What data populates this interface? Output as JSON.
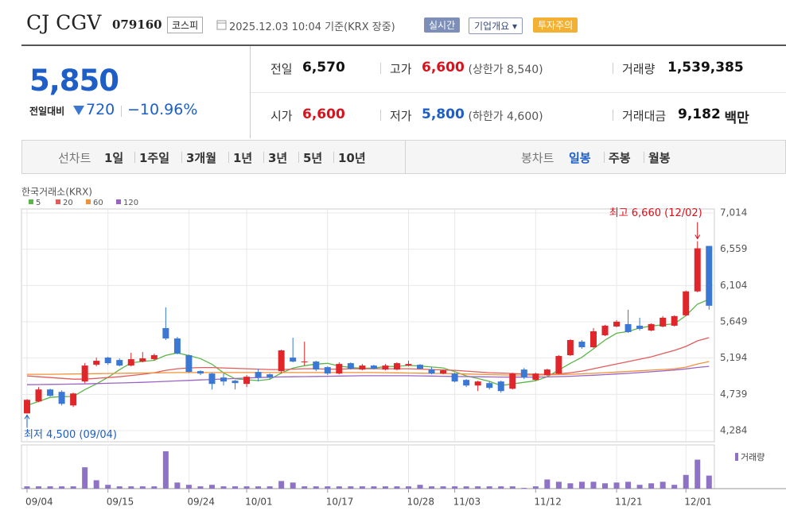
{
  "header": {
    "company": "CJ CGV",
    "code": "079160",
    "market": "코스피",
    "timestamp": "2025.12.03 10:04 기준(KRX 장중)",
    "buttons": [
      "실시간",
      "기업개요",
      "투자주의"
    ]
  },
  "quote": {
    "price": "5,850",
    "change_label": "전일대비",
    "change": "720",
    "change_rate": "−10.96%",
    "items": [
      {
        "label": "전일",
        "value": "6,570",
        "color": "#111111"
      },
      {
        "label": "고가",
        "value": "6,600",
        "note": "(상한가 8,540)",
        "color": "#d7131d"
      },
      {
        "label": "거래량",
        "value": "1,539,385",
        "color": "#111111"
      },
      {
        "label": "시가",
        "value": "6,600",
        "color": "#d7131d"
      },
      {
        "label": "저가",
        "value": "5,800",
        "note": "(하한가 4,600)",
        "color": "#1d5fc7"
      },
      {
        "label": "거래대금",
        "value": "9,182",
        "unit": "백만",
        "color": "#111111"
      }
    ]
  },
  "tabs": {
    "line_label": "선차트",
    "line_periods": [
      "1일",
      "1주일",
      "3개월",
      "1년",
      "3년",
      "5년",
      "10년"
    ],
    "candle_label": "봉차트",
    "candle_periods": [
      "일봉",
      "주봉",
      "월봉"
    ]
  },
  "chart_data": {
    "type": "candlestick",
    "source": "한국거래소(KRX)",
    "max_label": "최고 6,660 (12/02)",
    "min_label": "최저 4,500 (09/04)",
    "categories": [
      "09/04",
      null,
      null,
      null,
      null,
      null,
      null,
      "09/15",
      null,
      null,
      null,
      null,
      null,
      null,
      "09/24",
      null,
      null,
      null,
      null,
      "10/01",
      null,
      null,
      null,
      null,
      null,
      null,
      "10/17",
      null,
      null,
      null,
      null,
      null,
      null,
      "10/28",
      null,
      null,
      null,
      "11/03",
      null,
      null,
      null,
      null,
      null,
      null,
      "11/12",
      null,
      null,
      null,
      null,
      null,
      null,
      "11/21",
      null,
      null,
      null,
      null,
      null,
      "12/01",
      null,
      null
    ],
    "open": [
      4500,
      4650,
      4800,
      4770,
      4600,
      4900,
      5110,
      5200,
      5170,
      5100,
      5150,
      5180,
      5570,
      5440,
      5230,
      5030,
      5000,
      4950,
      4910,
      4870,
      5020,
      4990,
      5030,
      5200,
      5140,
      5150,
      5080,
      5000,
      5130,
      5050,
      5100,
      5050,
      5050,
      5100,
      5110,
      5050,
      5000,
      5000,
      4920,
      4850,
      4880,
      4900,
      4810,
      5050,
      4920,
      4980,
      5000,
      5230,
      5400,
      5330,
      5480,
      5590,
      5620,
      5600,
      5540,
      5590,
      5600,
      5730,
      6030,
      6600
    ],
    "high": [
      4680,
      4830,
      4810,
      4790,
      4760,
      5130,
      5200,
      5210,
      5190,
      5260,
      5270,
      5250,
      5830,
      5460,
      5240,
      5040,
      5010,
      5000,
      4920,
      4980,
      5060,
      5000,
      5300,
      5450,
      5400,
      5160,
      5090,
      5140,
      5140,
      5120,
      5110,
      5120,
      5140,
      5160,
      5120,
      5080,
      5050,
      5010,
      4930,
      4910,
      4900,
      4910,
      5010,
      5070,
      5010,
      5060,
      5230,
      5430,
      5420,
      5570,
      5610,
      5670,
      5800,
      5700,
      5630,
      5720,
      5730,
      6040,
      6660,
      6600
    ],
    "low": [
      4500,
      4640,
      4710,
      4600,
      4580,
      4880,
      5090,
      5110,
      5090,
      5090,
      5140,
      5160,
      5420,
      5240,
      5010,
      4980,
      4800,
      4850,
      4800,
      4830,
      4900,
      4930,
      5000,
      5140,
      5100,
      5030,
      4980,
      4990,
      5050,
      5040,
      5050,
      5040,
      5040,
      5090,
      5050,
      4990,
      4990,
      4890,
      4830,
      4780,
      4800,
      4760,
      4800,
      4930,
      4910,
      4970,
      4990,
      5220,
      5310,
      5320,
      5470,
      5580,
      5510,
      5540,
      5530,
      5580,
      5590,
      5720,
      6020,
      5800
    ],
    "close": [
      4670,
      4800,
      4720,
      4620,
      4750,
      5100,
      5160,
      5130,
      5100,
      5180,
      5190,
      5230,
      5440,
      5250,
      5020,
      5000,
      4870,
      4900,
      4880,
      4960,
      4950,
      4950,
      5290,
      5150,
      5150,
      5050,
      5000,
      5120,
      5060,
      5100,
      5060,
      5100,
      5130,
      5120,
      5060,
      5000,
      5040,
      4900,
      4850,
      4900,
      4820,
      4780,
      5000,
      4950,
      5000,
      5050,
      5220,
      5420,
      5330,
      5530,
      5600,
      5650,
      5520,
      5560,
      5620,
      5700,
      5720,
      6030,
      6570,
      5850
    ],
    "up_color": "#e0262b",
    "down_color": "#3a78d4",
    "ylim": [
      4284,
      7014
    ],
    "yticks": [
      {
        "value": 4284,
        "label": "4,284"
      },
      {
        "value": 4739,
        "label": "4,739"
      },
      {
        "value": 5194,
        "label": "5,194"
      },
      {
        "value": 5649,
        "label": "5,649"
      },
      {
        "value": 6104,
        "label": "6,104"
      },
      {
        "value": 6559,
        "label": "6,559"
      },
      {
        "value": 7014,
        "label": "7,014"
      }
    ],
    "grid": true,
    "moving_averages": [
      {
        "name": "5",
        "color": "#5cb548",
        "values": [
          4600,
          4650,
          4700,
          4710,
          4712,
          4798,
          4870,
          4952,
          5048,
          5134,
          5152,
          5166,
          5228,
          5258,
          5226,
          5188,
          5116,
          5008,
          4934,
          4922,
          4912,
          4928,
          5006,
          5068,
          5098,
          5118,
          5128,
          5094,
          5076,
          5066,
          5068,
          5088,
          5090,
          5102,
          5094,
          5082,
          5070,
          5024,
          4970,
          4938,
          4902,
          4850,
          4870,
          4890,
          4910,
          4960,
          5044,
          5128,
          5204,
          5310,
          5420,
          5506,
          5526,
          5572,
          5596,
          5610,
          5624,
          5726,
          5870,
          5930
        ]
      },
      {
        "name": "20",
        "color": "#e35b5b",
        "values": [
          4970,
          4960,
          4950,
          4940,
          4930,
          4930,
          4940,
          4950,
          4960,
          4975,
          4990,
          5010,
          5040,
          5060,
          5070,
          5075,
          5075,
          5070,
          5065,
          5060,
          5055,
          5050,
          5050,
          5055,
          5060,
          5060,
          5055,
          5055,
          5060,
          5060,
          5060,
          5060,
          5060,
          5060,
          5055,
          5050,
          5045,
          5040,
          5030,
          5020,
          5010,
          5005,
          5000,
          4995,
          4990,
          4990,
          4995,
          5010,
          5030,
          5060,
          5090,
          5120,
          5150,
          5180,
          5210,
          5250,
          5290,
          5340,
          5410,
          5450
        ]
      },
      {
        "name": "60",
        "color": "#f0913a",
        "values": [
          4990,
          4990,
          4990,
          4992,
          4994,
          4996,
          4998,
          5000,
          5002,
          5004,
          5006,
          5008,
          5010,
          5012,
          5012,
          5012,
          5012,
          5012,
          5012,
          5012,
          5012,
          5012,
          5012,
          5012,
          5012,
          5012,
          5012,
          5012,
          5012,
          5012,
          5012,
          5010,
          5008,
          5006,
          5004,
          5002,
          5000,
          4998,
          4994,
          4990,
          4986,
          4982,
          4980,
          4980,
          4980,
          4982,
          4986,
          4990,
          4996,
          5002,
          5010,
          5018,
          5026,
          5034,
          5042,
          5050,
          5060,
          5080,
          5120,
          5150
        ]
      },
      {
        "name": "120",
        "color": "#9a63c4",
        "values": [
          4860,
          4862,
          4864,
          4866,
          4868,
          4870,
          4874,
          4878,
          4882,
          4886,
          4890,
          4896,
          4902,
          4908,
          4914,
          4920,
          4926,
          4932,
          4938,
          4944,
          4950,
          4954,
          4958,
          4960,
          4962,
          4964,
          4966,
          4968,
          4970,
          4972,
          4972,
          4972,
          4972,
          4972,
          4970,
          4968,
          4966,
          4964,
          4962,
          4960,
          4958,
          4956,
          4955,
          4955,
          4956,
          4958,
          4962,
          4966,
          4972,
          4978,
          4986,
          4994,
          5002,
          5012,
          5022,
          5032,
          5044,
          5058,
          5076,
          5090
        ]
      }
    ],
    "volume": {
      "name": "거래량",
      "color": "#8d72c6",
      "values": [
        270000,
        270000,
        270000,
        270000,
        270000,
        2520000,
        990000,
        450000,
        270000,
        270000,
        270000,
        270000,
        4410000,
        720000,
        450000,
        270000,
        450000,
        270000,
        270000,
        270000,
        270000,
        270000,
        900000,
        720000,
        270000,
        270000,
        270000,
        270000,
        270000,
        270000,
        270000,
        270000,
        270000,
        270000,
        450000,
        270000,
        270000,
        270000,
        270000,
        270000,
        270000,
        270000,
        270000,
        90000,
        270000,
        1080000,
        810000,
        630000,
        810000,
        810000,
        630000,
        720000,
        810000,
        450000,
        630000,
        810000,
        450000,
        1620000,
        3420000,
        1539385
      ]
    }
  }
}
